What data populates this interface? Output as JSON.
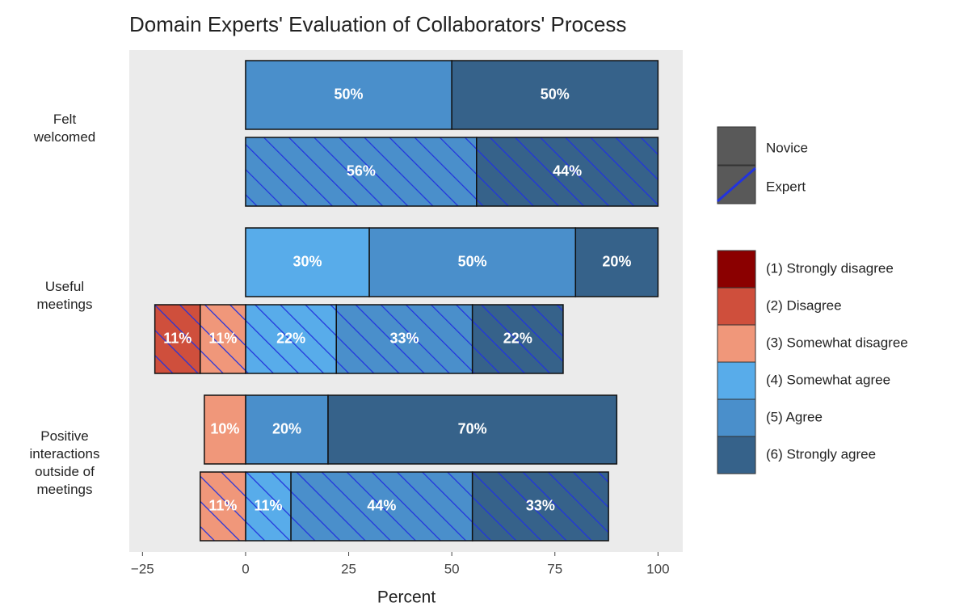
{
  "chart_data": {
    "type": "diverging-stacked-bar",
    "title": "Domain Experts' Evaluation of Collaborators' Process",
    "x_label": "Percent",
    "categories": [
      [
        "Felt",
        "welcomed"
      ],
      [
        "Useful",
        "meetings"
      ],
      [
        "Positive",
        "interactions",
        "outside of",
        "meetings"
      ]
    ],
    "groups": [
      "Novice",
      "Expert"
    ],
    "group_color": "#595959",
    "hatch_color": "#2233dd",
    "diverging": true,
    "series": [
      {
        "name": "(1) Strongly disagree",
        "color": "#8b0000",
        "values": [
          [
            null,
            null
          ],
          [
            null,
            null
          ],
          [
            null,
            null
          ]
        ],
        "value_labels": [
          [
            null,
            null
          ],
          [
            null,
            null
          ],
          [
            null,
            null
          ]
        ]
      },
      {
        "name": "(2) Disagree",
        "color": "#cf4f3c",
        "values": [
          [
            null,
            null
          ],
          [
            null,
            11
          ],
          [
            null,
            null
          ]
        ],
        "value_labels": [
          [
            null,
            null
          ],
          [
            null,
            "11%"
          ],
          [
            null,
            null
          ]
        ]
      },
      {
        "name": "(3) Somewhat disagree",
        "color": "#f0977a",
        "values": [
          [
            null,
            null
          ],
          [
            null,
            11
          ],
          [
            10,
            11
          ]
        ],
        "value_labels": [
          [
            null,
            null
          ],
          [
            null,
            "11%"
          ],
          [
            "10%",
            "11%"
          ]
        ]
      },
      {
        "name": "(4) Somewhat agree",
        "color": "#58acea",
        "values": [
          [
            null,
            null
          ],
          [
            30,
            22
          ],
          [
            null,
            11
          ]
        ],
        "value_labels": [
          [
            null,
            null
          ],
          [
            "30%",
            "22%"
          ],
          [
            null,
            "11%"
          ]
        ]
      },
      {
        "name": "(5) Agree",
        "color": "#4a8fcb",
        "values": [
          [
            50,
            56
          ],
          [
            50,
            33
          ],
          [
            20,
            44
          ]
        ],
        "value_labels": [
          [
            "50%",
            "56%"
          ],
          [
            "50%",
            "33%"
          ],
          [
            "20%",
            "44%"
          ]
        ]
      },
      {
        "name": "(6) Strongly agree",
        "color": "#36628a",
        "values": [
          [
            50,
            44
          ],
          [
            20,
            22
          ],
          [
            70,
            33
          ]
        ],
        "value_labels": [
          [
            "50%",
            "44%"
          ],
          [
            "20%",
            "22%"
          ],
          [
            "70%",
            "33%"
          ]
        ]
      }
    ],
    "xlim": [
      -28.2,
      106
    ],
    "xticks": [
      {
        "value": -25,
        "label": "−25"
      },
      0,
      25,
      50,
      75,
      100
    ]
  }
}
